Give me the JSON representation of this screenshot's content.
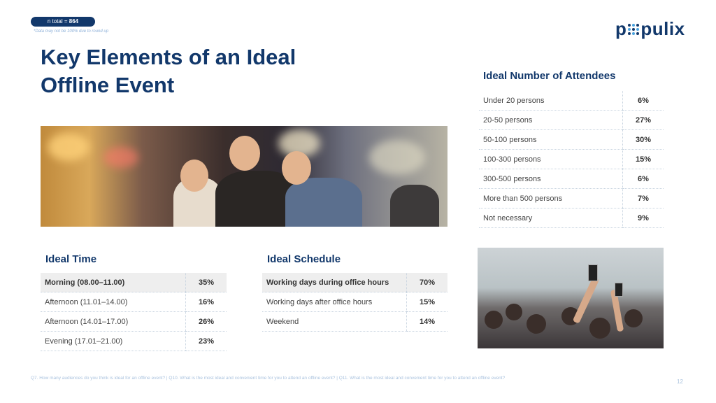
{
  "badge": {
    "label": "n total =",
    "value": "864"
  },
  "note": "*Data may not be 100% due to round up",
  "logo": {
    "text_left": "p",
    "text_right": "pulix"
  },
  "title": "Key Elements of an Ideal Offline Event",
  "attendees": {
    "heading": "Ideal Number of Attendees",
    "rows": [
      {
        "label": "Under 20 persons",
        "value": "6%"
      },
      {
        "label": "20-50 persons",
        "value": "27%"
      },
      {
        "label": "50-100 persons",
        "value": "30%"
      },
      {
        "label": "100-300 persons",
        "value": "15%"
      },
      {
        "label": "300-500 persons",
        "value": "6%"
      },
      {
        "label": "More than 500 persons",
        "value": "7%"
      },
      {
        "label": "Not necessary",
        "value": "9%"
      }
    ]
  },
  "time": {
    "heading": "Ideal Time",
    "rows": [
      {
        "label": "Morning (08.00–11.00)",
        "value": "35%"
      },
      {
        "label": "Afternoon (11.01–14.00)",
        "value": "16%"
      },
      {
        "label": "Afternoon (14.01–17.00)",
        "value": "26%"
      },
      {
        "label": "Evening (17.01–21.00)",
        "value": "23%"
      }
    ]
  },
  "schedule": {
    "heading": "Ideal Schedule",
    "rows": [
      {
        "label": "Working days during office hours",
        "value": "70%"
      },
      {
        "label": "Working days after office hours",
        "value": "15%"
      },
      {
        "label": "Weekend",
        "value": "14%"
      }
    ]
  },
  "footer": "Q7. How many audiences do you think is ideal for an offline event? | Q10. What is the most ideal and convenient time for you to attend an offline event? | Q11. What is the most ideal and convenient time for you to attend an offline event?",
  "page_number": "12",
  "colors": {
    "brand": "#12386b",
    "accent": "#4aa3df",
    "highlight_row": "#eeeeee"
  }
}
